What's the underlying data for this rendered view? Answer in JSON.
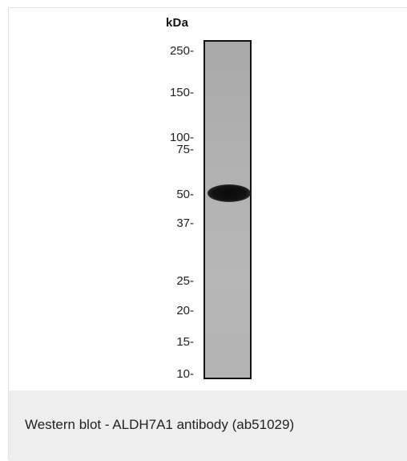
{
  "figure": {
    "unit_label": "kDa",
    "markers": [
      "250-",
      "150-",
      "100-",
      "75-",
      "50-",
      "37-",
      "25-",
      "20-",
      "15-",
      "10-"
    ],
    "caption": "Western blot - ALDH7A1 antibody (ab51029)"
  }
}
